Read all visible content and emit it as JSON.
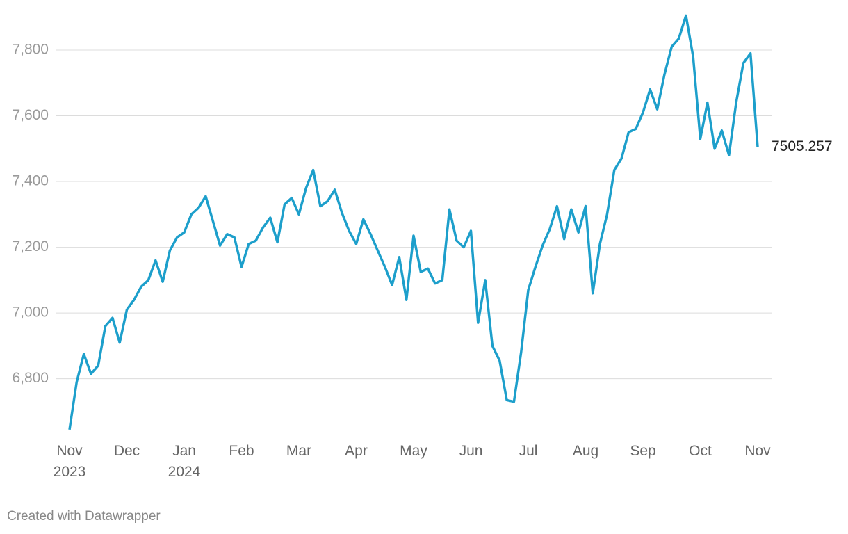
{
  "chart_data": {
    "type": "line",
    "credit": "Created with Datawrapper",
    "categories": [
      "Nov\n2023",
      null,
      null,
      null,
      null,
      null,
      null,
      null,
      "Dec",
      null,
      null,
      null,
      null,
      null,
      null,
      null,
      "Jan\n2024",
      null,
      null,
      null,
      null,
      null,
      null,
      null,
      "Feb",
      null,
      null,
      null,
      null,
      null,
      null,
      null,
      "Mar",
      null,
      null,
      null,
      null,
      null,
      null,
      null,
      "Apr",
      null,
      null,
      null,
      null,
      null,
      null,
      null,
      "May",
      null,
      null,
      null,
      null,
      null,
      null,
      null,
      "Jun",
      null,
      null,
      null,
      null,
      null,
      null,
      null,
      "Jul",
      null,
      null,
      null,
      null,
      null,
      null,
      null,
      "Aug",
      null,
      null,
      null,
      null,
      null,
      null,
      null,
      "Sep",
      null,
      null,
      null,
      null,
      null,
      null,
      null,
      "Oct",
      null,
      null,
      null,
      null,
      null,
      null,
      null,
      "Nov"
    ],
    "values": [
      6645,
      6790,
      6875,
      6815,
      6840,
      6960,
      6985,
      6910,
      7010,
      7040,
      7080,
      7100,
      7160,
      7095,
      7190,
      7230,
      7245,
      7300,
      7320,
      7355,
      7280,
      7205,
      7240,
      7230,
      7140,
      7210,
      7220,
      7260,
      7290,
      7215,
      7330,
      7350,
      7300,
      7380,
      7435,
      7325,
      7340,
      7375,
      7305,
      7250,
      7210,
      7285,
      7240,
      7190,
      7140,
      7085,
      7170,
      7040,
      7235,
      7125,
      7135,
      7090,
      7100,
      7315,
      7220,
      7200,
      7250,
      6970,
      7100,
      6900,
      6855,
      6735,
      6730,
      6880,
      7070,
      7140,
      7205,
      7255,
      7325,
      7225,
      7315,
      7245,
      7325,
      7060,
      7210,
      7300,
      7435,
      7470,
      7550,
      7560,
      7610,
      7680,
      7620,
      7725,
      7810,
      7835,
      7905,
      7780,
      7530,
      7640,
      7500,
      7555,
      7480,
      7640,
      7760,
      7790,
      7505.257
    ],
    "color": "#1d9fcb",
    "ylim": [
      6630,
      7910
    ],
    "yticks": [
      {
        "value": 6800,
        "label": "6,800"
      },
      {
        "value": 7000,
        "label": "7,000"
      },
      {
        "value": 7200,
        "label": "7,200"
      },
      {
        "value": 7400,
        "label": "7,400"
      },
      {
        "value": 7600,
        "label": "7,600"
      },
      {
        "value": 7800,
        "label": "7,800"
      }
    ],
    "grid": true,
    "end_label": true
  }
}
